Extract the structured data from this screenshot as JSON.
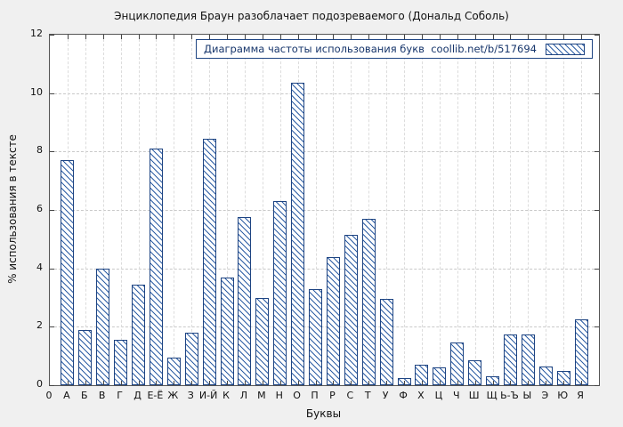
{
  "title": "Энциклопедия Браун разоблачает подозреваемого (Дональд Соболь)",
  "legend": {
    "label": "Диаграмма частоты использования букв  coollib.net/b/517694"
  },
  "axes": {
    "x_label": "Буквы",
    "y_label": "% использования в тексте",
    "origin_label": "0"
  },
  "colors": {
    "figure_bg": "#f0f0f0",
    "plot_bg": "#ffffff",
    "bar_edge": "#1e4482",
    "hatch": "#2f5fa5",
    "grid_horizontal": "#c9c9c9",
    "grid_vertical": "#dcdcdc",
    "legend_text": "#16356b"
  },
  "chart_data": {
    "type": "bar",
    "title": "Энциклопедия Браун разоблачает подозреваемого (Дональд Соболь)",
    "xlabel": "Буквы",
    "ylabel": "% использования в тексте",
    "ylim": [
      0,
      12
    ],
    "yticks": [
      0,
      2,
      4,
      6,
      8,
      10,
      12
    ],
    "grid": true,
    "legend_position": "top-right",
    "hatch": "\\",
    "categories": [
      "А",
      "Б",
      "В",
      "Г",
      "Д",
      "Е-Ё",
      "Ж",
      "З",
      "И-Й",
      "К",
      "Л",
      "М",
      "Н",
      "О",
      "П",
      "Р",
      "С",
      "Т",
      "У",
      "Ф",
      "Х",
      "Ц",
      "Ч",
      "Ш",
      "Щ",
      "Ь-Ъ",
      "Ы",
      "Э",
      "Ю",
      "Я"
    ],
    "values": [
      7.7,
      1.9,
      4.0,
      1.55,
      3.45,
      8.1,
      0.95,
      1.8,
      8.45,
      3.7,
      5.75,
      3.0,
      6.3,
      10.35,
      3.3,
      4.4,
      5.15,
      5.7,
      2.95,
      0.25,
      0.7,
      0.6,
      1.45,
      0.85,
      0.3,
      1.75,
      1.75,
      0.65,
      0.5,
      2.25
    ]
  }
}
